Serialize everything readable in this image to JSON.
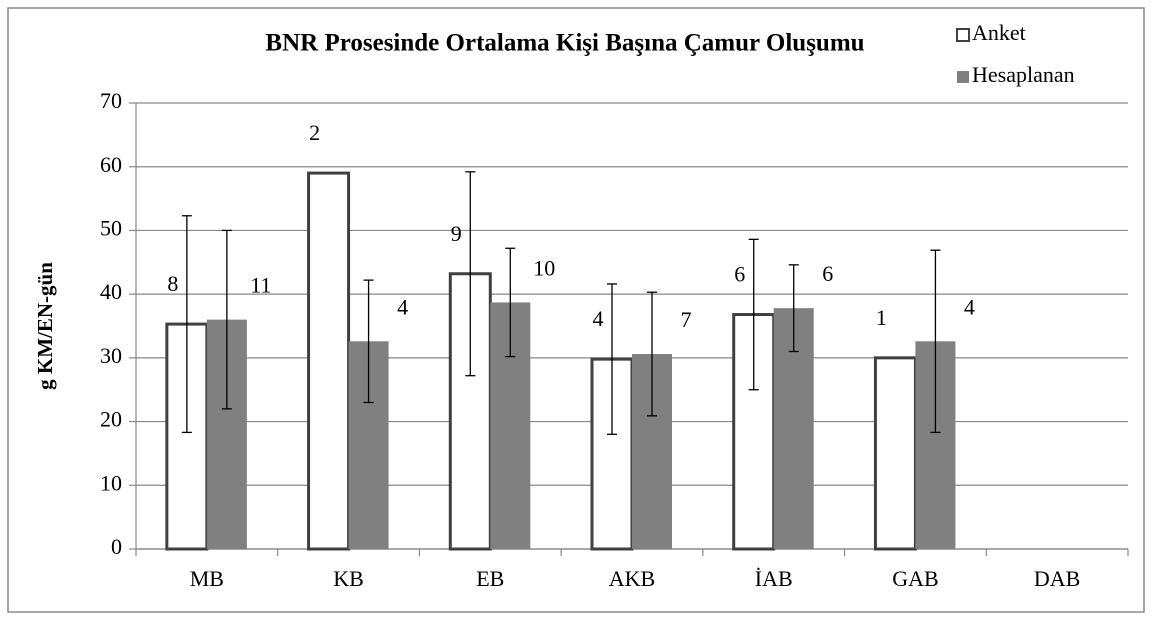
{
  "chart_data": {
    "type": "bar",
    "title": "BNR Prosesinde Ortalama Kişi Başına Çamur Oluşumu",
    "y_label": "g KM/EN-gün",
    "categories": [
      "MB",
      "KB",
      "EB",
      "AKB",
      "İAB",
      "GAB",
      "DAB"
    ],
    "series": [
      {
        "name": "Anket",
        "color": "#ffffff",
        "edge_color": "#404040",
        "values": [
          35.3,
          59,
          43.2,
          29.8,
          36.8,
          30,
          null
        ],
        "errors": [
          17,
          null,
          16,
          11.8,
          11.8,
          null,
          null
        ],
        "counts": [
          8,
          2,
          9,
          4,
          6,
          1,
          null
        ]
      },
      {
        "name": "Hesaplanan",
        "color": "#808080",
        "values": [
          36,
          32.6,
          38.7,
          30.6,
          37.8,
          32.6,
          null
        ],
        "errors": [
          14,
          9.6,
          8.5,
          9.7,
          6.8,
          14.3,
          null
        ],
        "counts": [
          11,
          4,
          10,
          7,
          6,
          4,
          null
        ]
      }
    ],
    "ylim": [
      0,
      70
    ],
    "yticks": [
      0,
      10,
      20,
      30,
      40,
      50,
      60,
      70
    ],
    "grid": true,
    "legend": "top-right"
  }
}
